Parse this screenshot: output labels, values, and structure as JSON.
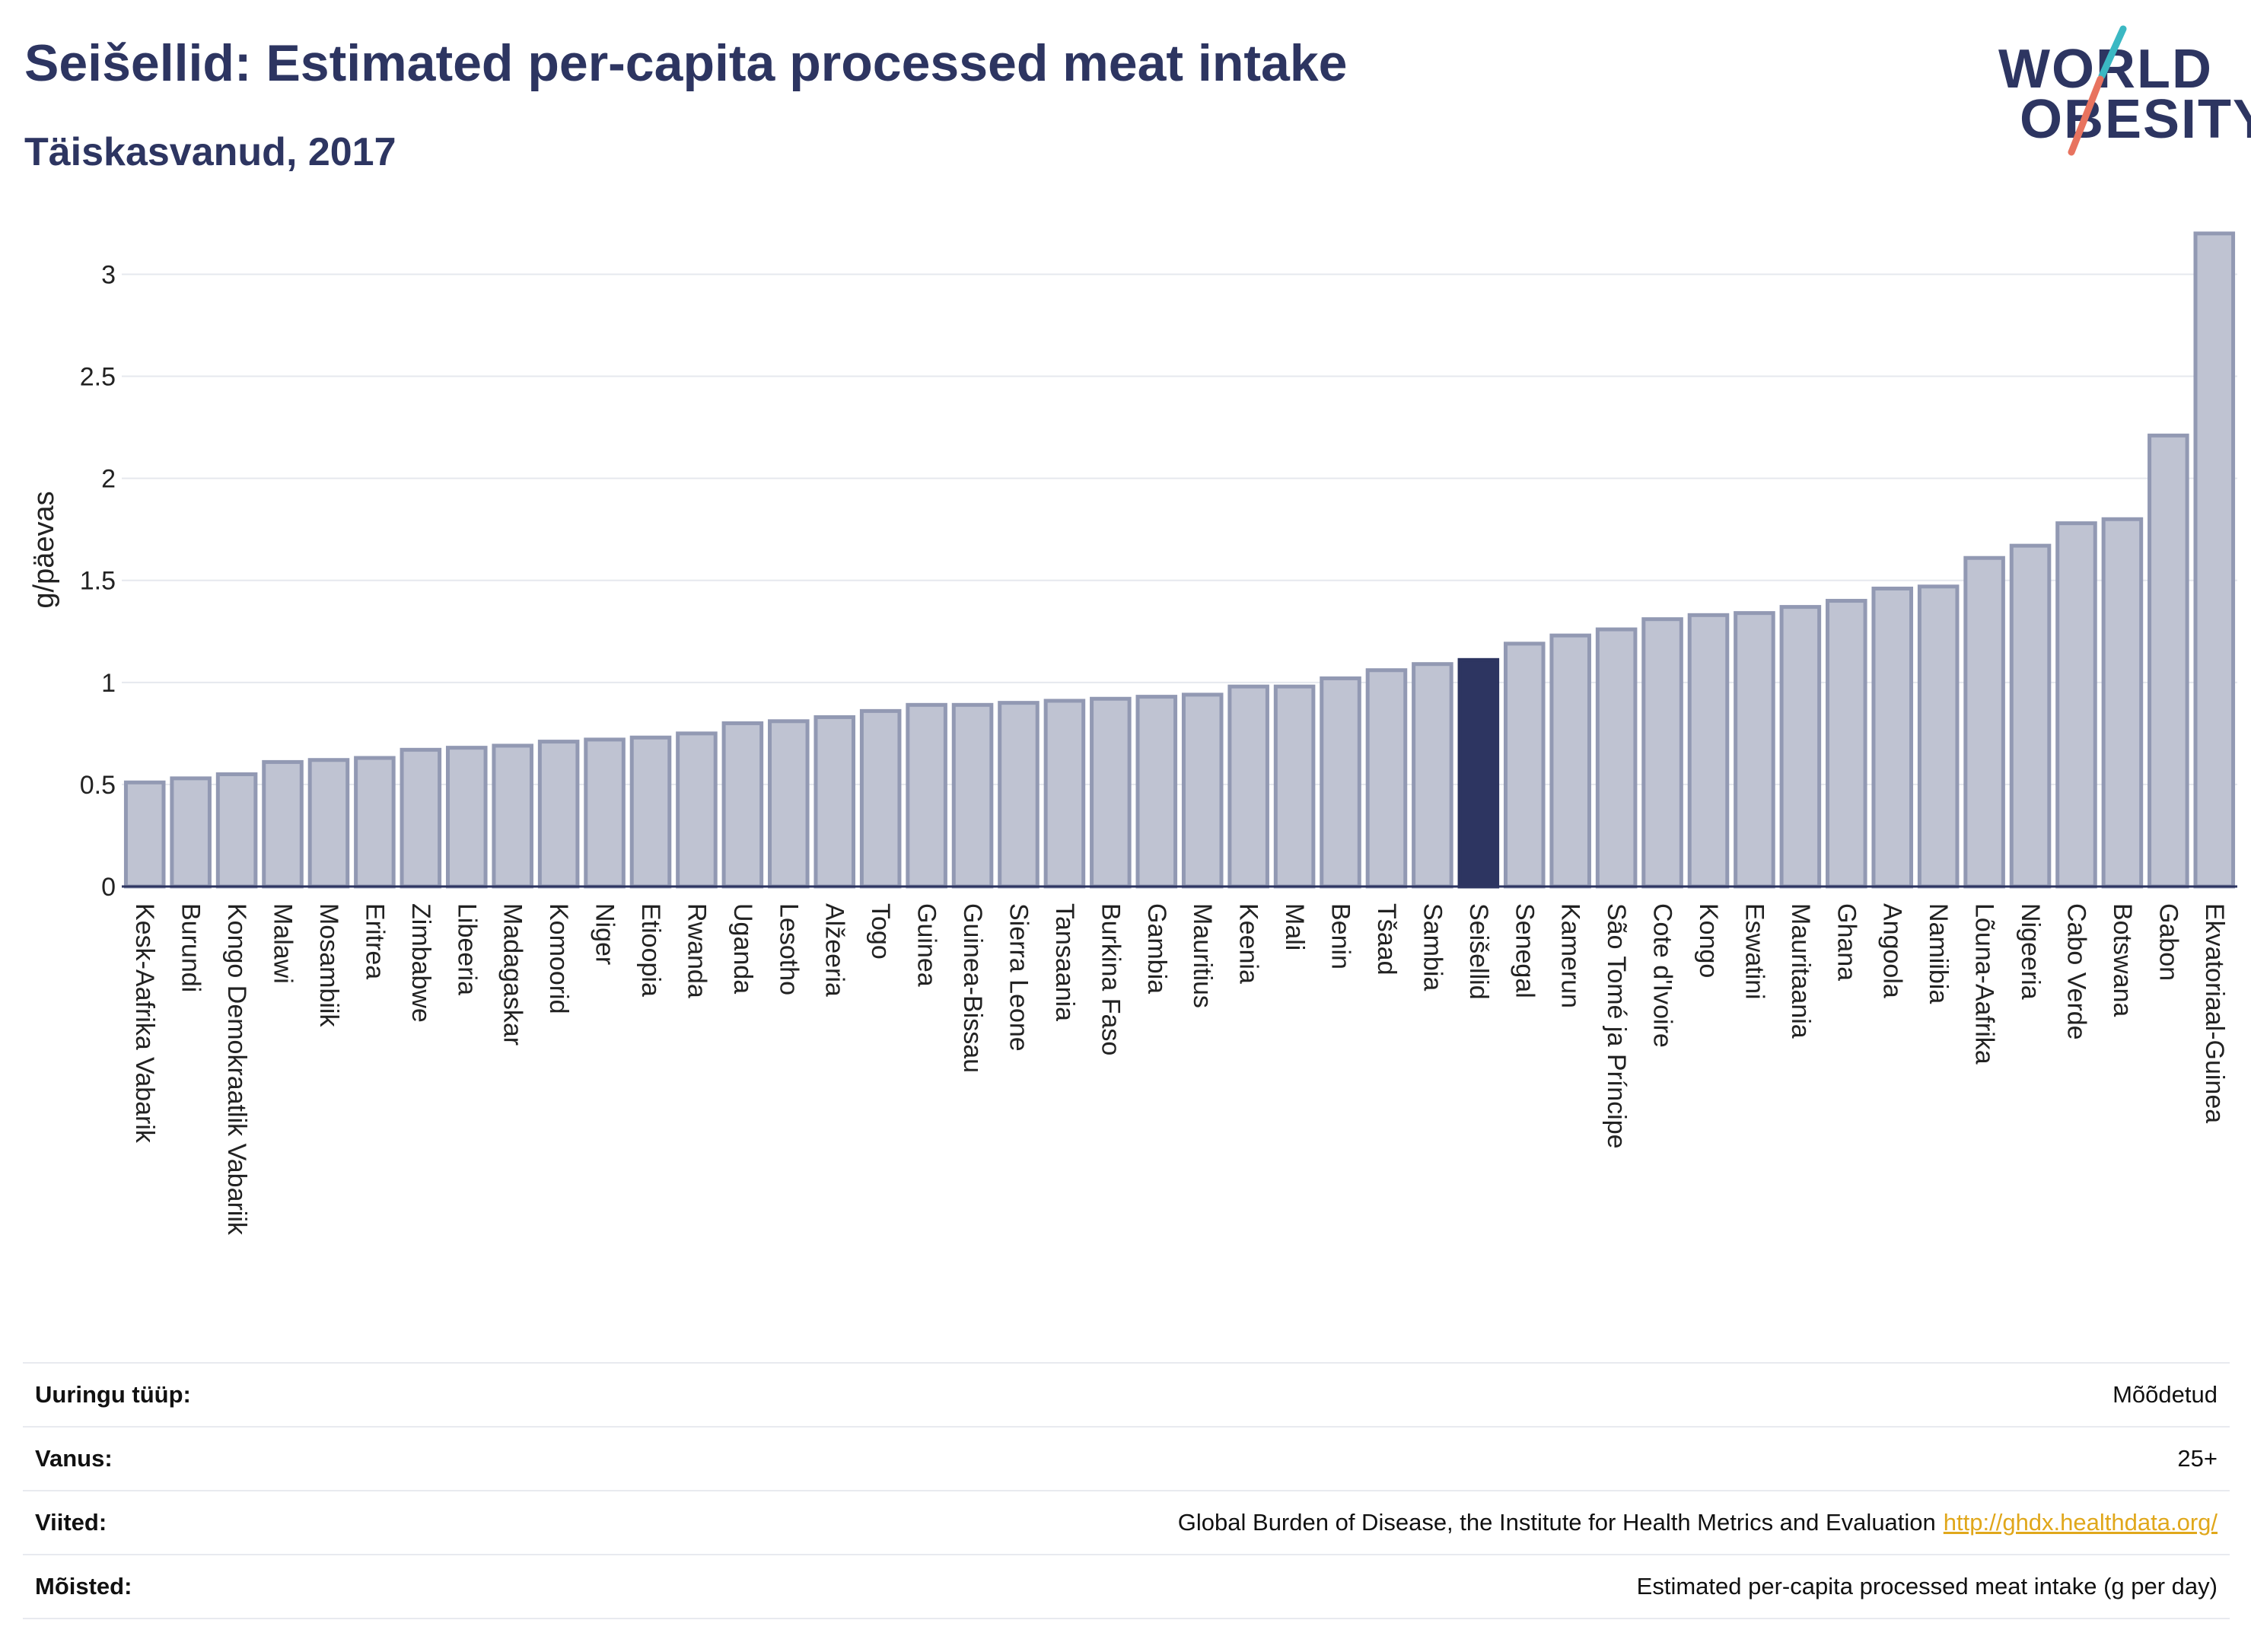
{
  "header": {
    "title": "Seišellid: Estimated per-capita processed meat intake",
    "subtitle": "Täiskasvanud, 2017"
  },
  "logo": {
    "line1": "WORLD",
    "line2": "OBESITY",
    "accent_teal": "#3bb8c3",
    "accent_coral": "#e8735f"
  },
  "chart_data": {
    "type": "bar",
    "ylabel": "g/päevas",
    "xlabel": "",
    "ylim": [
      0,
      3.3
    ],
    "yticks": [
      0,
      0.5,
      1,
      1.5,
      2,
      2.5,
      3
    ],
    "ytick_labels": [
      "0",
      "0.5",
      "1",
      "1.5",
      "2",
      "2.5",
      "3"
    ],
    "grid": true,
    "highlight": "Seišellid",
    "colors": {
      "bar": "#bfc3d2",
      "bar_border": "#9299b3",
      "highlight": "#2d3561",
      "axis": "#2d3561",
      "grid": "#e6e8ee"
    },
    "categories": [
      "Kesk-Aafrika Vabarik",
      "Burundi",
      "Kongo Demokraatlik Vabariik",
      "Malawi",
      "Mosambiik",
      "Eritrea",
      "Zimbabwe",
      "Libeeria",
      "Madagaskar",
      "Komoorid",
      "Niger",
      "Etioopia",
      "Rwanda",
      "Uganda",
      "Lesotho",
      "Alžeeria",
      "Togo",
      "Guinea",
      "Guinea-Bissau",
      "Sierra Leone",
      "Tansaania",
      "Burkina Faso",
      "Gambia",
      "Mauritius",
      "Keenia",
      "Mali",
      "Benin",
      "Tšaad",
      "Sambia",
      "Seišellid",
      "Senegal",
      "Kamerun",
      "São Tomé ja Príncipe",
      "Cote d'Ivoire",
      "Kongo",
      "Eswatini",
      "Mauritaania",
      "Ghana",
      "Angoola",
      "Namiibia",
      "Lõuna-Aafrika",
      "Nigeeria",
      "Cabo Verde",
      "Botswana",
      "Gabon",
      "Ekvatoriaal-Guinea"
    ],
    "values": [
      0.51,
      0.53,
      0.55,
      0.61,
      0.62,
      0.63,
      0.67,
      0.68,
      0.69,
      0.71,
      0.72,
      0.73,
      0.75,
      0.8,
      0.81,
      0.83,
      0.86,
      0.89,
      0.89,
      0.9,
      0.91,
      0.92,
      0.93,
      0.94,
      0.98,
      0.98,
      1.02,
      1.06,
      1.09,
      1.11,
      1.19,
      1.23,
      1.26,
      1.31,
      1.33,
      1.34,
      1.37,
      1.4,
      1.46,
      1.47,
      1.61,
      1.67,
      1.78,
      1.8,
      2.21,
      3.2
    ]
  },
  "info_table": [
    {
      "label": "Uuringu tüüp:",
      "value": "Mõõdetud"
    },
    {
      "label": "Vanus:",
      "value": "25+"
    },
    {
      "label": "Viited:",
      "value": "Global Burden of Disease, the Institute for Health Metrics and Evaluation",
      "link": "http://ghdx.healthdata.org/"
    },
    {
      "label": "Mõisted:",
      "value": "Estimated per-capita processed meat intake (g per day)"
    }
  ]
}
